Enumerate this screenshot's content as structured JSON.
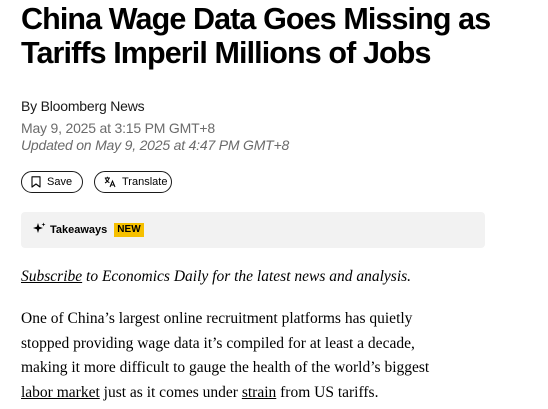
{
  "article": {
    "headline_line1": "China Wage Data Goes Missing as",
    "headline_line2": "Tariffs Imperil Millions of Jobs",
    "byline": "By Bloomberg News",
    "published": "May 9, 2025 at 3:15 PM GMT+8",
    "updated": "Updated on May 9, 2025 at 4:47 PM GMT+8"
  },
  "actions": {
    "save_label": "Save",
    "save_icon": "bookmark-icon",
    "translate_label": "Translate",
    "translate_icon": "translate-icon"
  },
  "takeaways": {
    "label": "Takeaways",
    "badge": "NEW",
    "badge_color": "#f6c000",
    "icon": "sparkle-icon"
  },
  "promo": {
    "link_text": "Subscribe",
    "rest": " to Economics Daily for the latest news and analysis."
  },
  "body": {
    "line1": "One of China’s largest online recruitment platforms has quietly",
    "line2": "stopped providing wage data it’s compiled for at least a decade,",
    "line3": "making it more difficult to gauge the health of the world’s biggest",
    "line4_link1": "labor market",
    "line4_mid": " just as it comes under ",
    "line4_link2": "strain",
    "line4_end": " from US tariffs."
  }
}
